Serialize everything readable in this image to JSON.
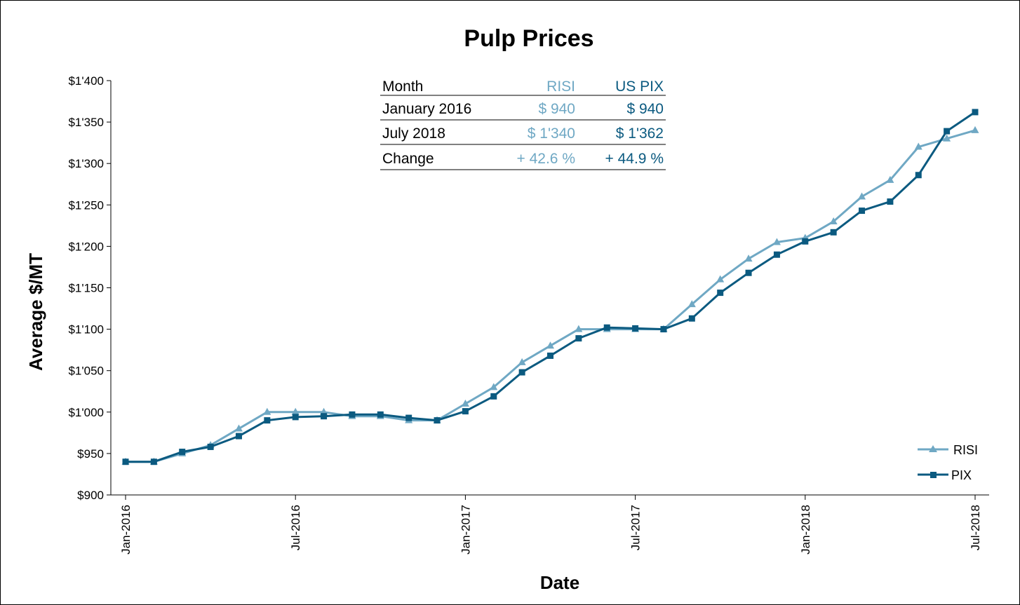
{
  "chart_data": {
    "type": "line",
    "title": "Pulp Prices",
    "xlabel": "Date",
    "ylabel": "Average $/MT",
    "ylim": [
      900,
      1400
    ],
    "yticks": [
      900,
      950,
      1000,
      1050,
      1100,
      1150,
      1200,
      1250,
      1300,
      1350,
      1400
    ],
    "ytick_labels": [
      "$900",
      "$950",
      "$1'000",
      "$1'050",
      "$1'100",
      "$1'150",
      "$1'200",
      "$1'250",
      "$1'300",
      "$1'350",
      "$1'400"
    ],
    "xtick_labels": [
      "Jan-2016",
      "Jul-2016",
      "Jan-2017",
      "Jul-2017",
      "Jan-2018",
      "Jul-2018"
    ],
    "xtick_months": [
      0,
      6,
      12,
      18,
      24,
      30
    ],
    "x": [
      "2016-01",
      "2016-02",
      "2016-03",
      "2016-04",
      "2016-05",
      "2016-06",
      "2016-07",
      "2016-08",
      "2016-09",
      "2016-10",
      "2016-11",
      "2016-12",
      "2017-01",
      "2017-02",
      "2017-03",
      "2017-04",
      "2017-05",
      "2017-06",
      "2017-07",
      "2017-08",
      "2017-09",
      "2017-10",
      "2017-11",
      "2017-12",
      "2018-01",
      "2018-02",
      "2018-03",
      "2018-04",
      "2018-05",
      "2018-06",
      "2018-07"
    ],
    "series": [
      {
        "name": "RISI",
        "color": "#6fa8c4",
        "marker": "triangle",
        "values": [
          940,
          940,
          950,
          960,
          980,
          1000,
          1000,
          1000,
          995,
          995,
          990,
          990,
          1010,
          1030,
          1060,
          1080,
          1100,
          1100,
          1100,
          1100,
          1130,
          1160,
          1185,
          1205,
          1210,
          1230,
          1260,
          1280,
          1320,
          1330,
          1340
        ]
      },
      {
        "name": "PIX",
        "color": "#0b5a80",
        "marker": "square",
        "values": [
          940,
          940,
          952,
          958,
          971,
          990,
          994,
          995,
          997,
          997,
          993,
          990,
          1001,
          1019,
          1048,
          1068,
          1089,
          1102,
          1101,
          1100,
          1113,
          1144,
          1168,
          1190,
          1206,
          1217,
          1243,
          1254,
          1286,
          1339,
          1362
        ]
      }
    ],
    "legend_position": "bottom-right",
    "grid": false
  },
  "summary_table": {
    "headers": [
      "Month",
      "RISI",
      "US PIX"
    ],
    "rows": [
      [
        "January 2016",
        "$ 940",
        "$ 940"
      ],
      [
        "July 2018",
        "$ 1'340",
        "$ 1'362"
      ],
      [
        "Change",
        "+ 42.6 %",
        "+ 44.9 %"
      ]
    ]
  },
  "legend": {
    "items": [
      "RISI",
      "PIX"
    ]
  }
}
